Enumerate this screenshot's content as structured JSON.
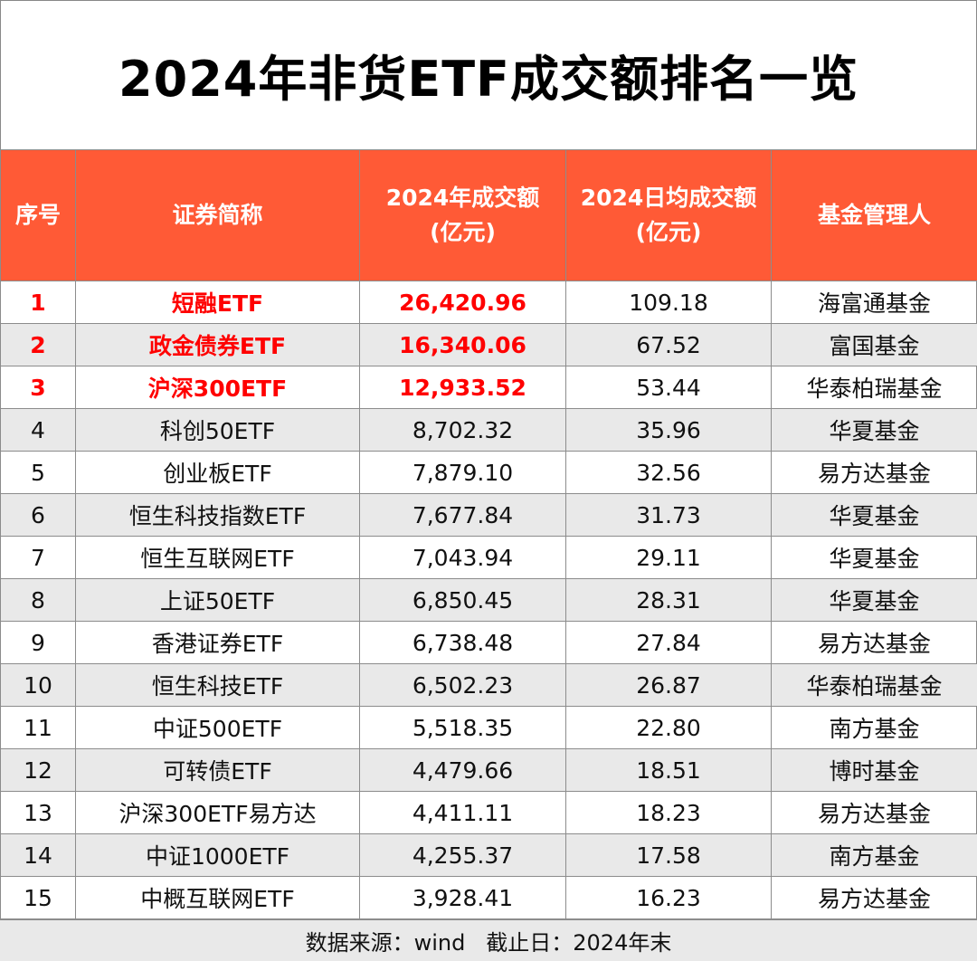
{
  "title": "2024年非货ETF成交额排名一览",
  "columns": [
    "序号",
    "证券简称",
    "2024年成交额\n(亿元)",
    "2024日均成交额\n(亿元)",
    "基金管理人"
  ],
  "highlight_color": "#FF0000",
  "header_color": "#FF5A36",
  "rows": [
    {
      "rank": "1",
      "name": "短融ETF",
      "turnover": "26,420.96",
      "daily": "109.18",
      "manager": "海富通基金"
    },
    {
      "rank": "2",
      "name": "政金债券ETF",
      "turnover": "16,340.06",
      "daily": "67.52",
      "manager": "富国基金"
    },
    {
      "rank": "3",
      "name": "沪深300ETF",
      "turnover": "12,933.52",
      "daily": "53.44",
      "manager": "华泰柏瑞基金"
    },
    {
      "rank": "4",
      "name": "科创50ETF",
      "turnover": "8,702.32",
      "daily": "35.96",
      "manager": "华夏基金"
    },
    {
      "rank": "5",
      "name": "创业板ETF",
      "turnover": "7,879.10",
      "daily": "32.56",
      "manager": "易方达基金"
    },
    {
      "rank": "6",
      "name": "恒生科技指数ETF",
      "turnover": "7,677.84",
      "daily": "31.73",
      "manager": "华夏基金"
    },
    {
      "rank": "7",
      "name": "恒生互联网ETF",
      "turnover": "7,043.94",
      "daily": "29.11",
      "manager": "华夏基金"
    },
    {
      "rank": "8",
      "name": "上证50ETF",
      "turnover": "6,850.45",
      "daily": "28.31",
      "manager": "华夏基金"
    },
    {
      "rank": "9",
      "name": "香港证券ETF",
      "turnover": "6,738.48",
      "daily": "27.84",
      "manager": "易方达基金"
    },
    {
      "rank": "10",
      "name": "恒生科技ETF",
      "turnover": "6,502.23",
      "daily": "26.87",
      "manager": "华泰柏瑞基金"
    },
    {
      "rank": "11",
      "name": "中证500ETF",
      "turnover": "5,518.35",
      "daily": "22.80",
      "manager": "南方基金"
    },
    {
      "rank": "12",
      "name": "可转债ETF",
      "turnover": "4,479.66",
      "daily": "18.51",
      "manager": "博时基金"
    },
    {
      "rank": "13",
      "name": "沪深300ETF易方达",
      "turnover": "4,411.11",
      "daily": "18.23",
      "manager": "易方达基金"
    },
    {
      "rank": "14",
      "name": "中证1000ETF",
      "turnover": "4,255.37",
      "daily": "17.58",
      "manager": "南方基金"
    },
    {
      "rank": "15",
      "name": "中概互联网ETF",
      "turnover": "3,928.41",
      "daily": "16.23",
      "manager": "易方达基金"
    }
  ],
  "footer": "数据来源：wind   截止日：2024年末"
}
